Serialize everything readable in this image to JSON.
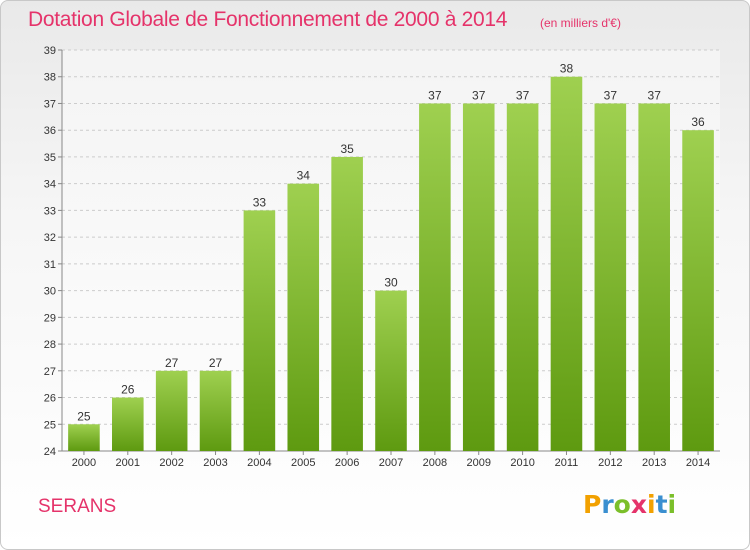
{
  "header": {
    "title": "Dotation Globale de Fonctionnement de 2000 à 2014",
    "subtitle": "(en milliers d'€)"
  },
  "footer": {
    "commune": "SERANS",
    "logo_text": "Proxiti",
    "logo_letters": [
      {
        "char": "P",
        "color": "#f2a100"
      },
      {
        "char": "r",
        "color": "#3a8fd0"
      },
      {
        "char": "o",
        "color": "#7bbf2a"
      },
      {
        "char": "x",
        "color": "#e5336a"
      },
      {
        "char": "i",
        "color": "#f2a100"
      },
      {
        "char": "t",
        "color": "#3a8fd0"
      },
      {
        "char": "i",
        "color": "#7bbf2a"
      }
    ]
  },
  "colors": {
    "title": "#e5336a",
    "bar_top": "#9fd050",
    "bar_bottom": "#5e9a10",
    "grid": "#cccccc"
  },
  "chart_data": {
    "type": "bar",
    "title": "Dotation Globale de Fonctionnement de 2000 à 2014",
    "subtitle": "(en milliers d'€)",
    "xlabel": "",
    "ylabel": "",
    "categories": [
      "2000",
      "2001",
      "2002",
      "2003",
      "2004",
      "2005",
      "2006",
      "2007",
      "2008",
      "2009",
      "2010",
      "2011",
      "2012",
      "2013",
      "2014"
    ],
    "values": [
      25,
      26,
      27,
      27,
      33,
      34,
      35,
      30,
      37,
      37,
      37,
      38,
      37,
      37,
      36
    ],
    "ylim": [
      24,
      39
    ],
    "yticks": [
      24,
      25,
      26,
      27,
      28,
      29,
      30,
      31,
      32,
      33,
      34,
      35,
      36,
      37,
      38,
      39
    ],
    "grid": true,
    "data_labels": true
  }
}
